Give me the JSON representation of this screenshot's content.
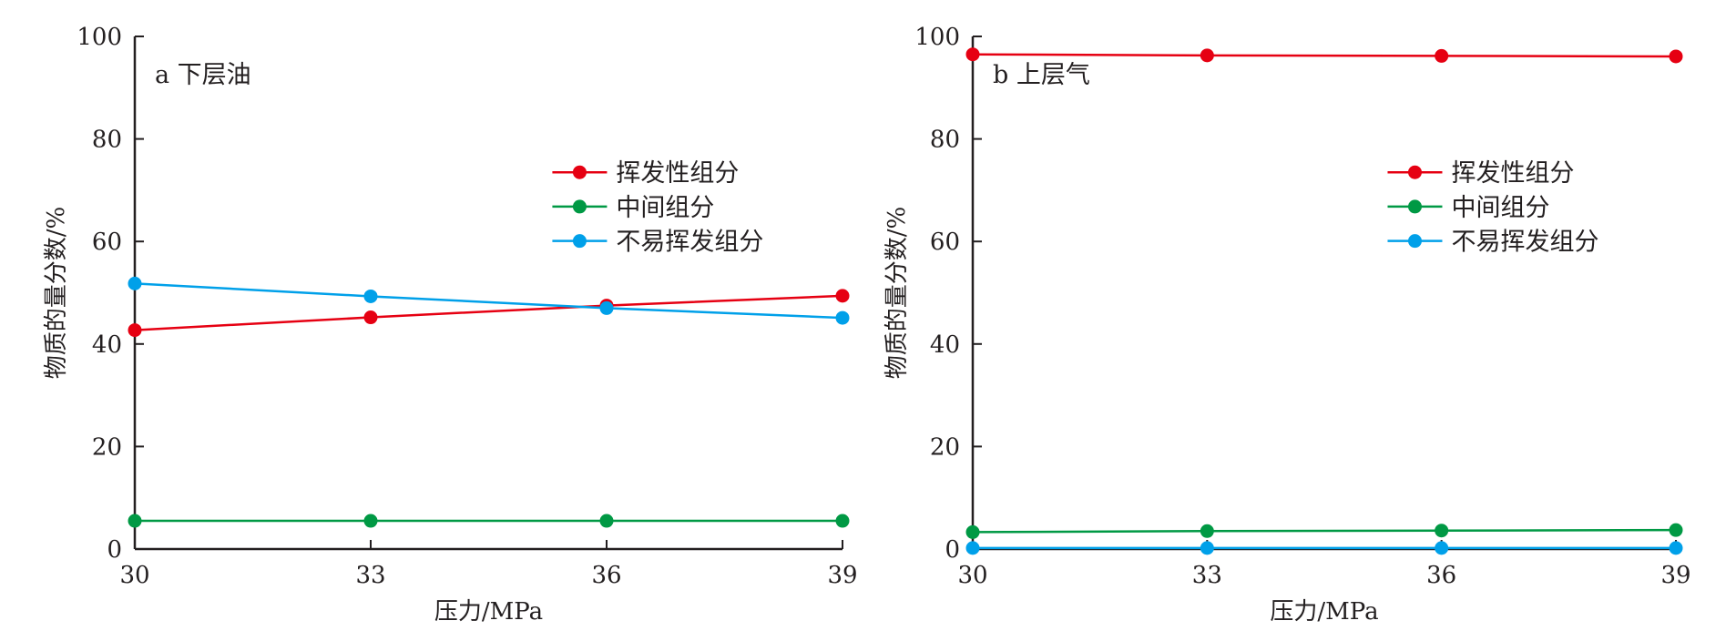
{
  "chart_data": [
    {
      "type": "line",
      "panel_label": "a 下层油",
      "xlabel": "压力/MPa",
      "ylabel": "物质的量分数/%",
      "x": [
        30,
        33,
        36,
        39
      ],
      "xticks": [
        "30",
        "33",
        "36",
        "39"
      ],
      "yticks": [
        "0",
        "20",
        "40",
        "60",
        "80",
        "100"
      ],
      "xlim": [
        30,
        39
      ],
      "ylim": [
        0,
        100
      ],
      "grid": false,
      "legend_position": "right",
      "series": [
        {
          "name": "挥发性组分",
          "color": "#e60012",
          "values": [
            42.7,
            45.2,
            47.5,
            49.4
          ]
        },
        {
          "name": "中间组分",
          "color": "#009944",
          "values": [
            5.5,
            5.5,
            5.5,
            5.5
          ]
        },
        {
          "name": "不易挥发组分",
          "color": "#00a0e9",
          "values": [
            51.8,
            49.3,
            47.0,
            45.1
          ]
        }
      ]
    },
    {
      "type": "line",
      "panel_label": "b 上层气",
      "xlabel": "压力/MPa",
      "ylabel": "物质的量分数/%",
      "x": [
        30,
        33,
        36,
        39
      ],
      "xticks": [
        "30",
        "33",
        "36",
        "39"
      ],
      "yticks": [
        "0",
        "20",
        "40",
        "60",
        "80",
        "100"
      ],
      "xlim": [
        30,
        39
      ],
      "ylim": [
        0,
        100
      ],
      "grid": false,
      "legend_position": "right",
      "series": [
        {
          "name": "挥发性组分",
          "color": "#e60012",
          "values": [
            96.5,
            96.3,
            96.2,
            96.1
          ]
        },
        {
          "name": "中间组分",
          "color": "#009944",
          "values": [
            3.3,
            3.5,
            3.6,
            3.7
          ]
        },
        {
          "name": "不易挥发组分",
          "color": "#00a0e9",
          "values": [
            0.2,
            0.2,
            0.2,
            0.2
          ]
        }
      ]
    }
  ]
}
